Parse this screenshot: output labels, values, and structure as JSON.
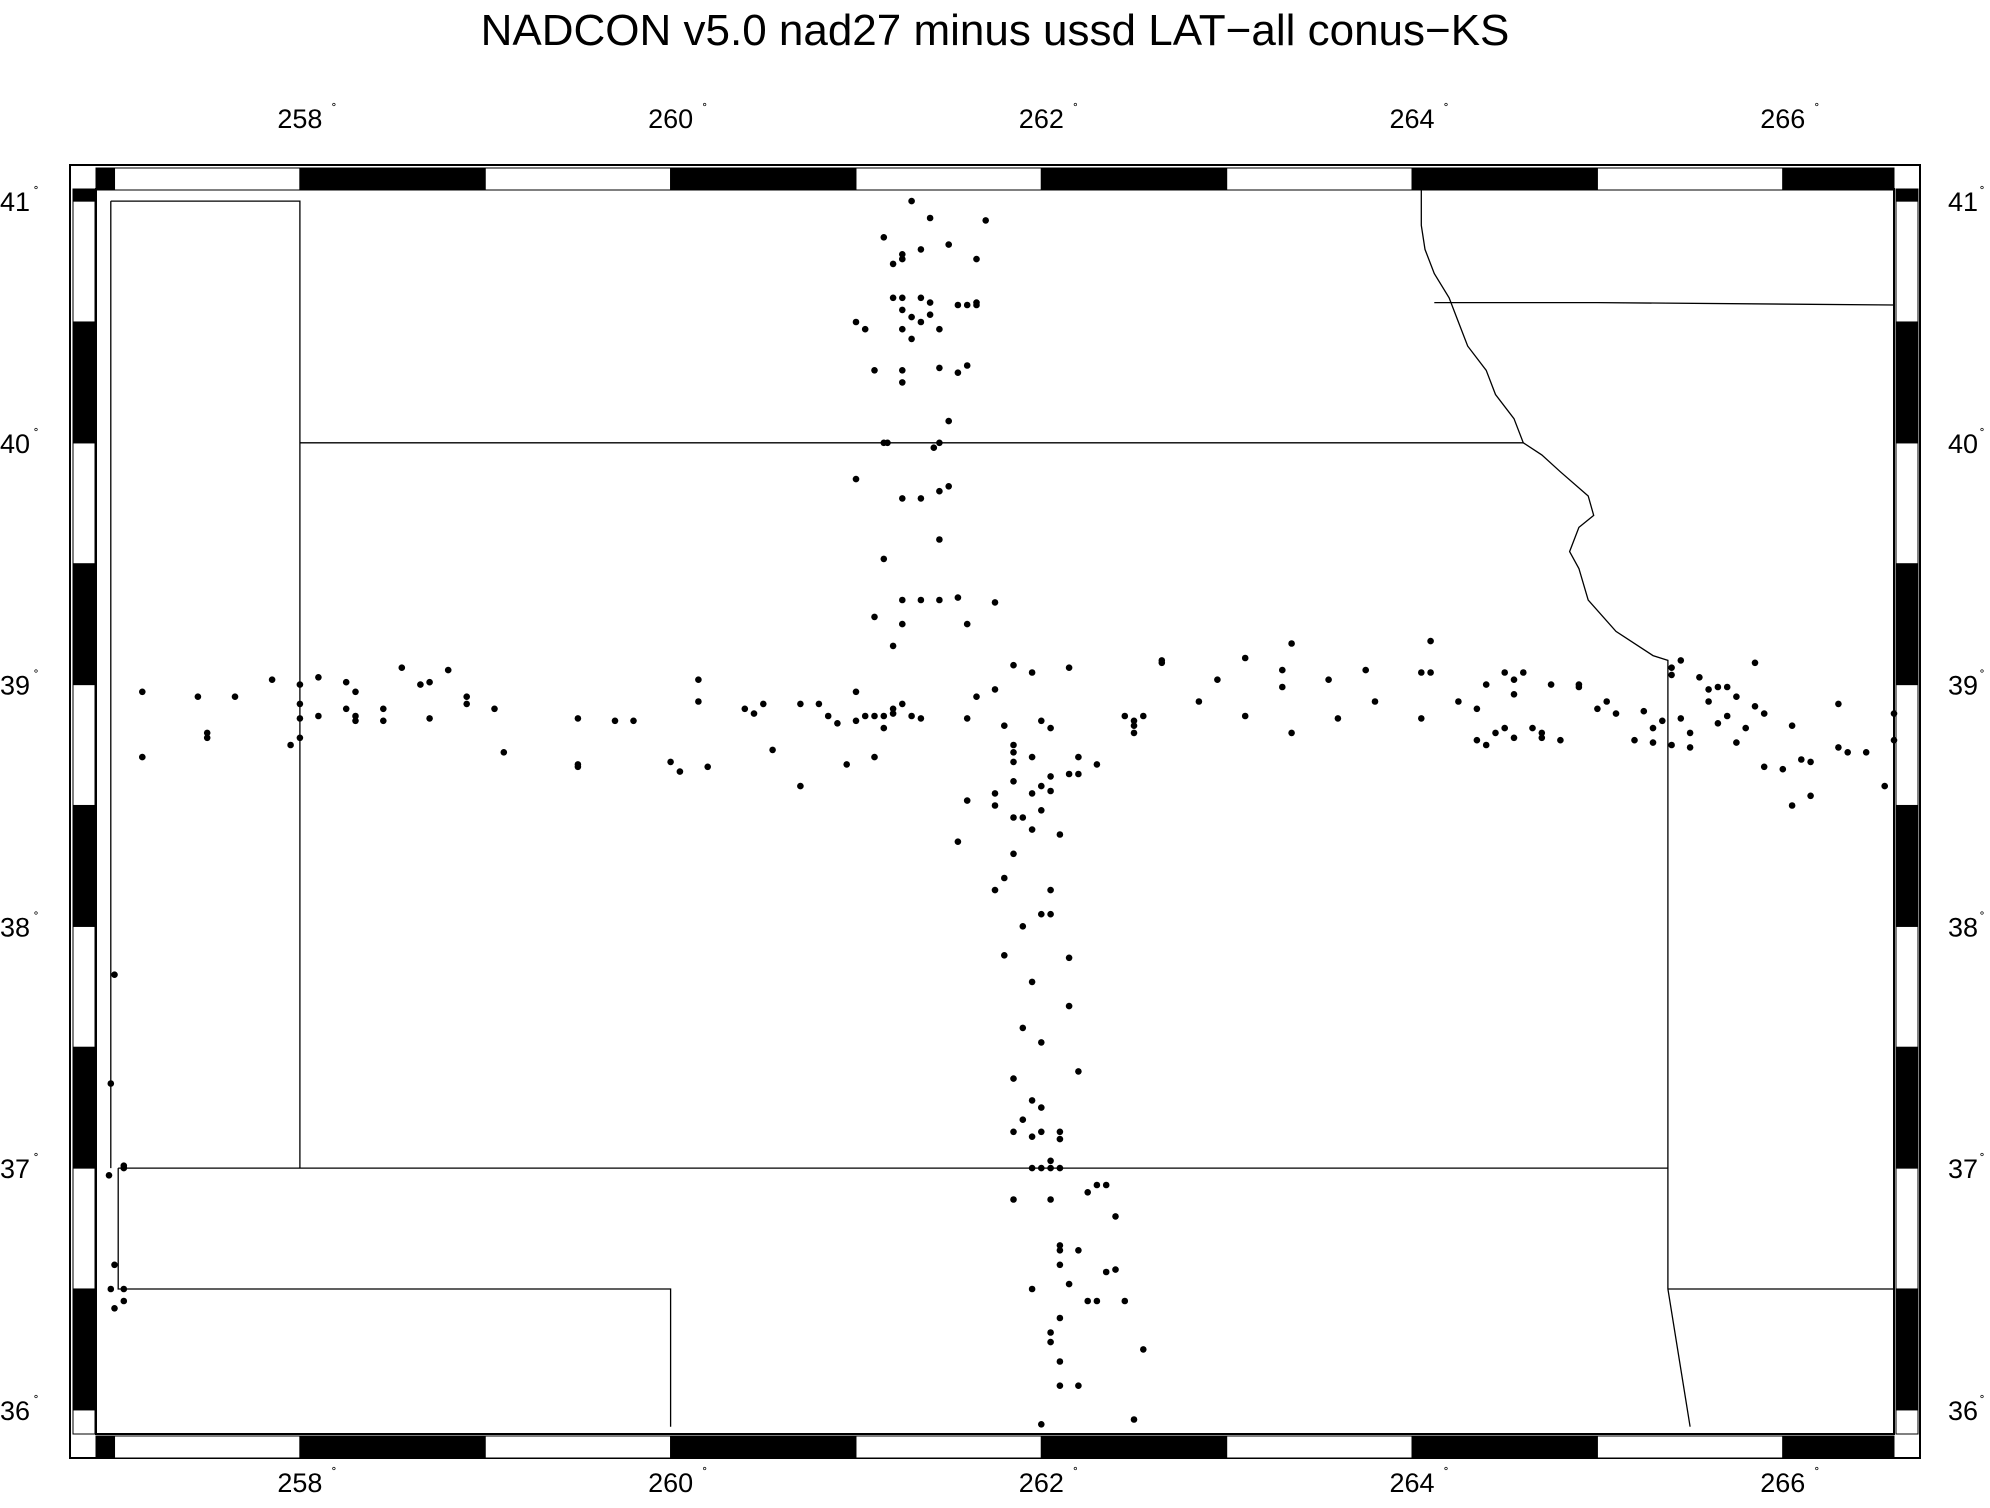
{
  "title": "NADCON v5.0 nad27 minus ussd LAT−all  conus−KS",
  "degree_symbol": "˚",
  "map": {
    "lon_range": [
      256.9,
      266.6
    ],
    "lat_range": [
      35.9,
      41.05
    ],
    "lon_ticks": [
      258,
      260,
      262,
      264,
      266
    ],
    "lat_ticks": [
      36,
      37,
      38,
      39,
      40,
      41
    ],
    "frame_colors": {
      "dark": "#000000",
      "light": "#ffffff"
    },
    "boundary_color": "#000000",
    "point_color": "#000000",
    "boundaries": [
      [
        [
          256.98,
          41.0
        ],
        [
          258.0,
          41.0
        ],
        [
          258.0,
          37.0
        ]
      ],
      [
        [
          258.0,
          40.0
        ],
        [
          261.0,
          40.0
        ],
        [
          262.0,
          40.0
        ],
        [
          263.0,
          40.0
        ],
        [
          264.0,
          40.0
        ],
        [
          264.6,
          40.0
        ]
      ],
      [
        [
          264.05,
          41.05
        ],
        [
          264.05,
          40.9
        ],
        [
          264.07,
          40.8
        ],
        [
          264.12,
          40.7
        ],
        [
          264.2,
          40.6
        ],
        [
          264.25,
          40.5
        ],
        [
          264.3,
          40.4
        ],
        [
          264.4,
          40.3
        ],
        [
          264.45,
          40.2
        ],
        [
          264.55,
          40.1
        ],
        [
          264.6,
          40.0
        ],
        [
          264.7,
          39.95
        ],
        [
          264.8,
          39.88
        ],
        [
          264.95,
          39.78
        ],
        [
          264.98,
          39.7
        ],
        [
          264.9,
          39.65
        ],
        [
          264.85,
          39.55
        ],
        [
          264.9,
          39.48
        ],
        [
          264.95,
          39.35
        ],
        [
          265.1,
          39.22
        ],
        [
          265.3,
          39.12
        ],
        [
          265.38,
          39.1
        ],
        [
          265.38,
          38.8
        ],
        [
          265.38,
          38.0
        ],
        [
          265.38,
          37.0
        ],
        [
          265.38,
          36.5
        ],
        [
          265.5,
          35.93
        ]
      ],
      [
        [
          264.12,
          40.58
        ],
        [
          265.0,
          40.58
        ],
        [
          266.6,
          40.57
        ]
      ],
      [
        [
          257.02,
          37.0
        ],
        [
          258.0,
          37.0
        ],
        [
          262.0,
          37.0
        ],
        [
          265.38,
          37.0
        ]
      ],
      [
        [
          257.02,
          37.0
        ],
        [
          257.02,
          36.5
        ],
        [
          260.0,
          36.5
        ],
        [
          260.0,
          35.93
        ]
      ],
      [
        [
          265.38,
          36.5
        ],
        [
          266.6,
          36.5
        ]
      ],
      [
        [
          256.98,
          41.0
        ],
        [
          256.98,
          37.0
        ]
      ]
    ]
  },
  "chart_data": {
    "type": "scatter",
    "title": "NADCON v5.0 nad27 minus ussd LAT−all  conus−KS",
    "xlabel": "",
    "ylabel": "",
    "xlim": [
      256.9,
      266.6
    ],
    "ylim": [
      35.9,
      41.05
    ],
    "x_ticks": [
      258,
      260,
      262,
      264,
      266
    ],
    "y_ticks": [
      36,
      37,
      38,
      39,
      40,
      41
    ],
    "grid": false,
    "points": [
      [
        261.3,
        41.0
      ],
      [
        261.4,
        40.93
      ],
      [
        261.7,
        40.92
      ],
      [
        261.15,
        40.85
      ],
      [
        261.35,
        40.8
      ],
      [
        261.25,
        40.78
      ],
      [
        261.25,
        40.76
      ],
      [
        261.2,
        40.74
      ],
      [
        261.5,
        40.82
      ],
      [
        261.65,
        40.76
      ],
      [
        261.25,
        40.6
      ],
      [
        261.35,
        40.6
      ],
      [
        261.2,
        40.6
      ],
      [
        261.4,
        40.58
      ],
      [
        261.55,
        40.57
      ],
      [
        261.6,
        40.57
      ],
      [
        261.65,
        40.58
      ],
      [
        261.65,
        40.57
      ],
      [
        261.25,
        40.55
      ],
      [
        261.3,
        40.52
      ],
      [
        261.4,
        40.53
      ],
      [
        261.35,
        40.5
      ],
      [
        261.0,
        40.5
      ],
      [
        261.05,
        40.47
      ],
      [
        261.25,
        40.47
      ],
      [
        261.45,
        40.47
      ],
      [
        261.3,
        40.43
      ],
      [
        261.1,
        40.3
      ],
      [
        261.25,
        40.3
      ],
      [
        261.45,
        40.31
      ],
      [
        261.55,
        40.29
      ],
      [
        261.6,
        40.32
      ],
      [
        261.25,
        40.25
      ],
      [
        261.5,
        40.09
      ],
      [
        261.45,
        40.0
      ],
      [
        261.17,
        40.0
      ],
      [
        261.15,
        40.0
      ],
      [
        261.42,
        39.98
      ],
      [
        261.0,
        39.85
      ],
      [
        261.5,
        39.82
      ],
      [
        261.45,
        39.8
      ],
      [
        261.25,
        39.77
      ],
      [
        261.35,
        39.77
      ],
      [
        261.45,
        39.6
      ],
      [
        261.15,
        39.52
      ],
      [
        261.35,
        39.35
      ],
      [
        261.45,
        39.35
      ],
      [
        261.25,
        39.35
      ],
      [
        261.55,
        39.36
      ],
      [
        261.75,
        39.34
      ],
      [
        261.1,
        39.28
      ],
      [
        261.25,
        39.25
      ],
      [
        261.6,
        39.25
      ],
      [
        261.2,
        39.16
      ],
      [
        261.85,
        39.08
      ],
      [
        262.15,
        39.07
      ],
      [
        261.95,
        39.05
      ],
      [
        261.75,
        38.98
      ],
      [
        261.65,
        38.95
      ],
      [
        261.8,
        38.83
      ],
      [
        262.05,
        38.82
      ],
      [
        262.0,
        38.85
      ],
      [
        261.85,
        38.75
      ],
      [
        261.85,
        38.72
      ],
      [
        261.95,
        38.7
      ],
      [
        261.85,
        38.68
      ],
      [
        262.2,
        38.7
      ],
      [
        262.3,
        38.67
      ],
      [
        262.05,
        38.62
      ],
      [
        262.15,
        38.63
      ],
      [
        262.2,
        38.63
      ],
      [
        261.85,
        38.6
      ],
      [
        262.0,
        38.58
      ],
      [
        262.05,
        38.56
      ],
      [
        261.75,
        38.55
      ],
      [
        261.95,
        38.55
      ],
      [
        261.6,
        38.52
      ],
      [
        261.75,
        38.5
      ],
      [
        261.9,
        38.45
      ],
      [
        261.85,
        38.45
      ],
      [
        262.0,
        38.48
      ],
      [
        261.95,
        38.4
      ],
      [
        262.1,
        38.38
      ],
      [
        261.55,
        38.35
      ],
      [
        261.85,
        38.3
      ],
      [
        261.8,
        38.2
      ],
      [
        261.75,
        38.15
      ],
      [
        262.05,
        38.15
      ],
      [
        262.05,
        38.05
      ],
      [
        262.0,
        38.05
      ],
      [
        261.9,
        38.0
      ],
      [
        262.15,
        37.87
      ],
      [
        261.8,
        37.88
      ],
      [
        261.95,
        37.77
      ],
      [
        262.15,
        37.67
      ],
      [
        261.9,
        37.58
      ],
      [
        262.0,
        37.52
      ],
      [
        262.2,
        37.4
      ],
      [
        261.85,
        37.37
      ],
      [
        261.95,
        37.28
      ],
      [
        262.0,
        37.25
      ],
      [
        261.9,
        37.2
      ],
      [
        261.85,
        37.15
      ],
      [
        262.0,
        37.15
      ],
      [
        261.95,
        37.13
      ],
      [
        262.1,
        37.15
      ],
      [
        262.1,
        37.12
      ],
      [
        262.05,
        37.03
      ],
      [
        262.0,
        37.0
      ],
      [
        262.05,
        37.0
      ],
      [
        262.1,
        37.0
      ],
      [
        261.95,
        37.0
      ],
      [
        262.3,
        36.93
      ],
      [
        262.35,
        36.93
      ],
      [
        262.25,
        36.9
      ],
      [
        261.85,
        36.87
      ],
      [
        262.05,
        36.87
      ],
      [
        262.4,
        36.8
      ],
      [
        262.1,
        36.68
      ],
      [
        262.2,
        36.66
      ],
      [
        262.1,
        36.66
      ],
      [
        262.1,
        36.6
      ],
      [
        262.35,
        36.57
      ],
      [
        262.4,
        36.58
      ],
      [
        262.15,
        36.52
      ],
      [
        261.95,
        36.5
      ],
      [
        262.25,
        36.45
      ],
      [
        262.3,
        36.45
      ],
      [
        262.45,
        36.45
      ],
      [
        262.1,
        36.38
      ],
      [
        262.05,
        36.32
      ],
      [
        262.05,
        36.28
      ],
      [
        262.55,
        36.25
      ],
      [
        262.1,
        36.2
      ],
      [
        262.1,
        36.1
      ],
      [
        262.2,
        36.1
      ],
      [
        262.0,
        35.94
      ],
      [
        262.5,
        35.96
      ],
      [
        257.15,
        38.97
      ],
      [
        257.15,
        38.7
      ],
      [
        257.45,
        38.95
      ],
      [
        257.5,
        38.8
      ],
      [
        257.5,
        38.78
      ],
      [
        257.65,
        38.95
      ],
      [
        257.85,
        39.02
      ],
      [
        258.0,
        39.0
      ],
      [
        258.0,
        38.92
      ],
      [
        258.0,
        38.86
      ],
      [
        258.1,
        38.87
      ],
      [
        258.1,
        39.03
      ],
      [
        258.0,
        38.78
      ],
      [
        257.95,
        38.75
      ],
      [
        258.25,
        39.01
      ],
      [
        258.3,
        38.97
      ],
      [
        258.25,
        38.9
      ],
      [
        258.3,
        38.87
      ],
      [
        258.3,
        38.85
      ],
      [
        258.45,
        38.9
      ],
      [
        258.55,
        39.07
      ],
      [
        258.45,
        38.85
      ],
      [
        258.65,
        39.0
      ],
      [
        258.7,
        38.86
      ],
      [
        258.7,
        39.01
      ],
      [
        258.8,
        39.06
      ],
      [
        258.9,
        38.95
      ],
      [
        258.9,
        38.92
      ],
      [
        259.05,
        38.9
      ],
      [
        259.1,
        38.72
      ],
      [
        259.5,
        38.67
      ],
      [
        259.5,
        38.66
      ],
      [
        259.5,
        38.86
      ],
      [
        259.7,
        38.85
      ],
      [
        259.8,
        38.85
      ],
      [
        260.0,
        38.68
      ],
      [
        260.05,
        38.64
      ],
      [
        260.15,
        38.93
      ],
      [
        260.15,
        39.02
      ],
      [
        260.2,
        38.66
      ],
      [
        260.4,
        38.9
      ],
      [
        260.45,
        38.88
      ],
      [
        260.5,
        38.92
      ],
      [
        260.55,
        38.73
      ],
      [
        260.7,
        38.58
      ],
      [
        260.7,
        38.92
      ],
      [
        260.8,
        38.92
      ],
      [
        260.85,
        38.87
      ],
      [
        260.9,
        38.84
      ],
      [
        261.0,
        38.97
      ],
      [
        261.0,
        38.85
      ],
      [
        261.05,
        38.87
      ],
      [
        261.1,
        38.87
      ],
      [
        261.1,
        38.7
      ],
      [
        261.15,
        38.87
      ],
      [
        261.2,
        38.88
      ],
      [
        261.25,
        38.92
      ],
      [
        261.3,
        38.87
      ],
      [
        261.2,
        38.9
      ],
      [
        261.15,
        38.82
      ],
      [
        260.95,
        38.67
      ],
      [
        261.35,
        38.86
      ],
      [
        261.6,
        38.86
      ],
      [
        262.5,
        38.85
      ],
      [
        262.45,
        38.87
      ],
      [
        262.5,
        38.8
      ],
      [
        262.5,
        38.83
      ],
      [
        262.55,
        38.87
      ],
      [
        262.65,
        39.1
      ],
      [
        262.65,
        39.09
      ],
      [
        262.85,
        38.93
      ],
      [
        262.95,
        39.02
      ],
      [
        263.1,
        39.11
      ],
      [
        263.1,
        38.87
      ],
      [
        263.3,
        39.06
      ],
      [
        263.3,
        38.99
      ],
      [
        263.35,
        38.8
      ],
      [
        263.35,
        39.17
      ],
      [
        263.55,
        39.02
      ],
      [
        263.6,
        38.86
      ],
      [
        263.75,
        39.06
      ],
      [
        263.8,
        38.93
      ],
      [
        264.05,
        39.05
      ],
      [
        264.1,
        39.05
      ],
      [
        264.05,
        38.86
      ],
      [
        264.1,
        39.18
      ],
      [
        264.25,
        38.93
      ],
      [
        264.35,
        38.9
      ],
      [
        264.35,
        38.77
      ],
      [
        264.4,
        38.75
      ],
      [
        264.4,
        39.0
      ],
      [
        264.45,
        38.8
      ],
      [
        264.5,
        38.82
      ],
      [
        264.5,
        39.05
      ],
      [
        264.55,
        38.78
      ],
      [
        264.55,
        39.02
      ],
      [
        264.55,
        38.96
      ],
      [
        264.6,
        39.05
      ],
      [
        264.65,
        38.82
      ],
      [
        264.7,
        38.78
      ],
      [
        264.7,
        38.8
      ],
      [
        264.75,
        39.0
      ],
      [
        264.8,
        38.77
      ],
      [
        264.9,
        39.0
      ],
      [
        264.9,
        38.99
      ],
      [
        265.0,
        38.9
      ],
      [
        265.05,
        38.93
      ],
      [
        265.1,
        38.88
      ],
      [
        265.25,
        38.89
      ],
      [
        265.2,
        38.77
      ],
      [
        265.3,
        38.76
      ],
      [
        265.3,
        38.82
      ],
      [
        265.35,
        38.85
      ],
      [
        265.45,
        38.86
      ],
      [
        265.4,
        38.75
      ],
      [
        265.5,
        38.8
      ],
      [
        265.5,
        38.74
      ],
      [
        265.55,
        39.03
      ],
      [
        265.6,
        38.98
      ],
      [
        265.6,
        38.93
      ],
      [
        265.65,
        38.99
      ],
      [
        265.7,
        38.99
      ],
      [
        265.7,
        38.87
      ],
      [
        265.75,
        38.76
      ],
      [
        265.75,
        38.95
      ],
      [
        265.65,
        38.84
      ],
      [
        265.8,
        38.82
      ],
      [
        265.85,
        39.09
      ],
      [
        265.85,
        38.91
      ],
      [
        265.9,
        38.88
      ],
      [
        265.9,
        38.66
      ],
      [
        266.0,
        38.65
      ],
      [
        266.05,
        38.83
      ],
      [
        266.05,
        38.5
      ],
      [
        266.1,
        38.69
      ],
      [
        266.15,
        38.54
      ],
      [
        266.15,
        38.68
      ],
      [
        266.3,
        38.74
      ],
      [
        266.3,
        38.92
      ],
      [
        266.35,
        38.72
      ],
      [
        266.45,
        38.72
      ],
      [
        266.55,
        38.58
      ],
      [
        266.6,
        38.88
      ],
      [
        266.6,
        38.77
      ],
      [
        265.4,
        39.07
      ],
      [
        265.4,
        39.04
      ],
      [
        265.45,
        39.1
      ],
      [
        257.0,
        37.8
      ],
      [
        256.98,
        37.35
      ],
      [
        257.05,
        37.01
      ],
      [
        257.05,
        37.0
      ],
      [
        256.97,
        36.97
      ],
      [
        257.0,
        36.6
      ],
      [
        257.05,
        36.5
      ],
      [
        257.05,
        36.45
      ],
      [
        256.98,
        36.5
      ],
      [
        257.0,
        36.42
      ]
    ]
  }
}
